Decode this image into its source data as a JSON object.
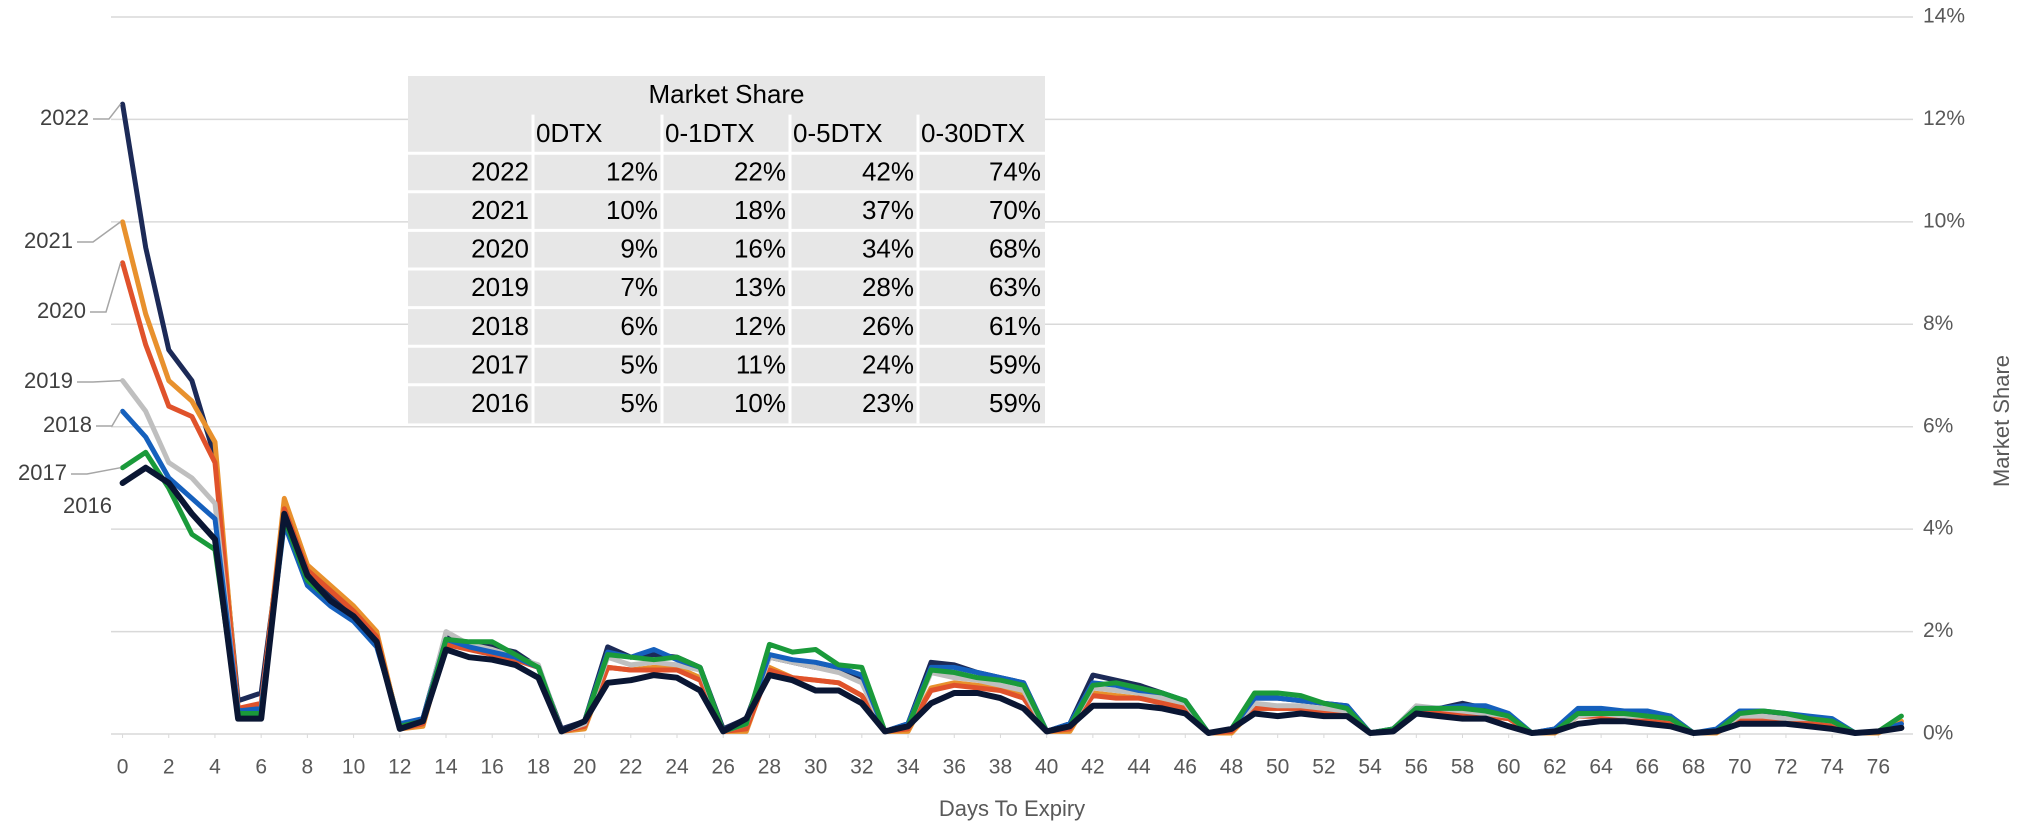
{
  "chart_data": {
    "type": "line",
    "x_label": "Days To Expiry",
    "y_label": "Market Share",
    "x": [
      0,
      1,
      2,
      3,
      4,
      5,
      6,
      7,
      8,
      9,
      10,
      11,
      12,
      13,
      14,
      15,
      16,
      17,
      18,
      19,
      20,
      21,
      22,
      23,
      24,
      25,
      26,
      27,
      28,
      29,
      30,
      31,
      32,
      33,
      34,
      35,
      36,
      37,
      38,
      39,
      40,
      41,
      42,
      43,
      44,
      45,
      46,
      47,
      48,
      49,
      50,
      51,
      52,
      53,
      54,
      55,
      56,
      57,
      58,
      59,
      60,
      61,
      62,
      63,
      64,
      65,
      66,
      67,
      68,
      69,
      70,
      71,
      72,
      73,
      74,
      75,
      76,
      77
    ],
    "xlim": [
      -0.5,
      77.5
    ],
    "xticks": [
      0,
      2,
      4,
      6,
      8,
      10,
      12,
      14,
      16,
      18,
      20,
      22,
      24,
      26,
      28,
      30,
      32,
      34,
      36,
      38,
      40,
      42,
      44,
      46,
      48,
      50,
      52,
      54,
      56,
      58,
      60,
      62,
      64,
      66,
      68,
      70,
      72,
      74,
      76
    ],
    "ylim": [
      0,
      14
    ],
    "yticks": [
      {
        "value": 0,
        "label": "0%"
      },
      {
        "value": 2,
        "label": "2%"
      },
      {
        "value": 4,
        "label": "4%"
      },
      {
        "value": 6,
        "label": "6%"
      },
      {
        "value": 8,
        "label": "8%"
      },
      {
        "value": 10,
        "label": "10%"
      },
      {
        "value": 12,
        "label": "12%"
      },
      {
        "value": 14,
        "label": "14%"
      }
    ],
    "y_axis_side": "right",
    "grid": true,
    "series": [
      {
        "name": "2022",
        "color": "#1c2a57",
        "values": [
          12.3,
          9.5,
          7.5,
          6.9,
          5.4,
          0.65,
          0.8,
          4.3,
          3.2,
          2.7,
          2.4,
          1.9,
          0.15,
          0.3,
          1.95,
          1.75,
          1.7,
          1.6,
          1.3,
          0.1,
          0.25,
          1.7,
          1.5,
          1.55,
          1.5,
          1.3,
          0.1,
          0.3,
          1.5,
          1.4,
          1.3,
          1.25,
          1.1,
          0.05,
          0.2,
          1.4,
          1.35,
          1.2,
          1.1,
          1.0,
          0.05,
          0.2,
          1.15,
          1.05,
          0.95,
          0.8,
          0.6,
          0.02,
          0.1,
          0.7,
          0.7,
          0.65,
          0.6,
          0.55,
          0.02,
          0.1,
          0.5,
          0.5,
          0.6,
          0.5,
          0.35,
          0.02,
          0.1,
          0.45,
          0.45,
          0.45,
          0.4,
          0.35,
          0.02,
          0.05,
          0.4,
          0.4,
          0.35,
          0.3,
          0.25,
          0.02,
          0.05,
          0.15
        ]
      },
      {
        "name": "2021",
        "color": "#e8912d",
        "values": [
          10.0,
          8.2,
          6.9,
          6.5,
          5.7,
          0.5,
          0.5,
          4.6,
          3.3,
          2.9,
          2.5,
          2.0,
          0.1,
          0.15,
          1.8,
          1.7,
          1.6,
          1.5,
          1.3,
          0.05,
          0.1,
          1.3,
          1.25,
          1.3,
          1.3,
          1.1,
          0.05,
          0.05,
          1.3,
          1.1,
          1.05,
          1.0,
          0.75,
          0.05,
          0.05,
          0.9,
          1.0,
          0.95,
          0.9,
          0.75,
          0.05,
          0.05,
          0.8,
          0.75,
          0.7,
          0.65,
          0.5,
          0.02,
          0.02,
          0.5,
          0.5,
          0.5,
          0.45,
          0.4,
          0.02,
          0.05,
          0.4,
          0.4,
          0.4,
          0.35,
          0.3,
          0.02,
          0.02,
          0.35,
          0.35,
          0.35,
          0.3,
          0.25,
          0.02,
          0.02,
          0.3,
          0.3,
          0.3,
          0.25,
          0.2,
          0.02,
          0.02,
          0.25
        ]
      },
      {
        "name": "2020",
        "color": "#e0522b",
        "values": [
          9.2,
          7.6,
          6.4,
          6.2,
          5.3,
          0.5,
          0.6,
          4.4,
          3.2,
          2.8,
          2.4,
          1.9,
          0.1,
          0.2,
          1.75,
          1.65,
          1.55,
          1.45,
          1.3,
          0.05,
          0.15,
          1.3,
          1.25,
          1.25,
          1.25,
          1.05,
          0.05,
          0.1,
          1.25,
          1.1,
          1.05,
          1.0,
          0.75,
          0.05,
          0.1,
          0.85,
          0.95,
          0.9,
          0.85,
          0.7,
          0.05,
          0.1,
          0.75,
          0.7,
          0.7,
          0.6,
          0.5,
          0.02,
          0.05,
          0.5,
          0.5,
          0.5,
          0.45,
          0.4,
          0.02,
          0.05,
          0.4,
          0.4,
          0.4,
          0.35,
          0.3,
          0.02,
          0.05,
          0.35,
          0.35,
          0.35,
          0.3,
          0.25,
          0.02,
          0.05,
          0.3,
          0.3,
          0.3,
          0.25,
          0.2,
          0.02,
          0.05,
          0.2
        ]
      },
      {
        "name": "2019",
        "color": "#bfbfbf",
        "values": [
          6.9,
          6.3,
          5.3,
          5.0,
          4.5,
          0.4,
          0.5,
          4.2,
          3.1,
          2.6,
          2.3,
          1.8,
          0.15,
          0.25,
          2.0,
          1.75,
          1.65,
          1.5,
          1.35,
          0.05,
          0.2,
          1.5,
          1.35,
          1.4,
          1.35,
          1.25,
          0.05,
          0.2,
          1.5,
          1.4,
          1.3,
          1.2,
          1.0,
          0.05,
          0.15,
          1.2,
          1.1,
          1.05,
          0.95,
          0.85,
          0.05,
          0.15,
          0.9,
          0.85,
          0.8,
          0.7,
          0.6,
          0.02,
          0.1,
          0.6,
          0.55,
          0.55,
          0.5,
          0.45,
          0.02,
          0.1,
          0.55,
          0.5,
          0.45,
          0.4,
          0.35,
          0.02,
          0.05,
          0.35,
          0.4,
          0.35,
          0.35,
          0.3,
          0.02,
          0.05,
          0.35,
          0.35,
          0.3,
          0.3,
          0.25,
          0.02,
          0.05,
          0.15
        ]
      },
      {
        "name": "2018",
        "color": "#1560bd",
        "values": [
          6.3,
          5.8,
          5.0,
          4.6,
          4.2,
          0.45,
          0.5,
          4.1,
          2.9,
          2.5,
          2.2,
          1.7,
          0.2,
          0.3,
          1.85,
          1.7,
          1.6,
          1.5,
          1.3,
          0.05,
          0.25,
          1.6,
          1.5,
          1.65,
          1.45,
          1.3,
          0.05,
          0.25,
          1.55,
          1.45,
          1.4,
          1.3,
          1.15,
          0.05,
          0.2,
          1.3,
          1.3,
          1.2,
          1.1,
          1.0,
          0.05,
          0.2,
          1.0,
          0.95,
          0.85,
          0.8,
          0.65,
          0.02,
          0.1,
          0.7,
          0.7,
          0.65,
          0.6,
          0.55,
          0.02,
          0.1,
          0.5,
          0.5,
          0.55,
          0.55,
          0.4,
          0.02,
          0.1,
          0.5,
          0.5,
          0.45,
          0.45,
          0.35,
          0.02,
          0.1,
          0.45,
          0.45,
          0.4,
          0.35,
          0.3,
          0.02,
          0.05,
          0.2
        ]
      },
      {
        "name": "2017",
        "color": "#1a9a3a",
        "values": [
          5.2,
          5.5,
          4.8,
          3.9,
          3.6,
          0.4,
          0.4,
          4.2,
          3.0,
          2.6,
          2.3,
          1.8,
          0.15,
          0.25,
          1.85,
          1.8,
          1.8,
          1.55,
          1.3,
          0.05,
          0.25,
          1.55,
          1.5,
          1.45,
          1.5,
          1.3,
          0.05,
          0.2,
          1.75,
          1.6,
          1.65,
          1.35,
          1.3,
          0.05,
          0.15,
          1.25,
          1.2,
          1.1,
          1.05,
          0.95,
          0.05,
          0.15,
          0.95,
          1.0,
          0.9,
          0.8,
          0.65,
          0.02,
          0.1,
          0.8,
          0.8,
          0.75,
          0.6,
          0.5,
          0.02,
          0.1,
          0.5,
          0.5,
          0.5,
          0.45,
          0.35,
          0.02,
          0.05,
          0.4,
          0.4,
          0.4,
          0.35,
          0.3,
          0.02,
          0.05,
          0.4,
          0.45,
          0.4,
          0.3,
          0.25,
          0.02,
          0.05,
          0.35
        ]
      },
      {
        "name": "2016",
        "color": "#0a1633",
        "values": [
          4.9,
          5.2,
          4.9,
          4.3,
          3.8,
          0.3,
          0.3,
          4.3,
          3.1,
          2.6,
          2.3,
          1.8,
          0.1,
          0.25,
          1.65,
          1.5,
          1.45,
          1.35,
          1.1,
          0.05,
          0.25,
          1.0,
          1.05,
          1.15,
          1.1,
          0.85,
          0.05,
          0.3,
          1.15,
          1.05,
          0.85,
          0.85,
          0.6,
          0.05,
          0.15,
          0.6,
          0.8,
          0.8,
          0.7,
          0.5,
          0.05,
          0.15,
          0.55,
          0.55,
          0.55,
          0.5,
          0.4,
          0.02,
          0.1,
          0.4,
          0.35,
          0.4,
          0.35,
          0.35,
          0.02,
          0.05,
          0.4,
          0.35,
          0.3,
          0.3,
          0.15,
          0.02,
          0.05,
          0.2,
          0.25,
          0.25,
          0.2,
          0.15,
          0.02,
          0.05,
          0.2,
          0.2,
          0.2,
          0.15,
          0.1,
          0.02,
          0.05,
          0.12
        ]
      }
    ],
    "table": {
      "title": "Market Share",
      "columns": [
        "0DTX",
        "0-1DTX",
        "0-5DTX",
        "0-30DTX"
      ],
      "rows": [
        {
          "label": "2022",
          "cells": [
            "12%",
            "22%",
            "42%",
            "74%"
          ]
        },
        {
          "label": "2021",
          "cells": [
            "10%",
            "18%",
            "37%",
            "70%"
          ]
        },
        {
          "label": "2020",
          "cells": [
            "9%",
            "16%",
            "34%",
            "68%"
          ]
        },
        {
          "label": "2019",
          "cells": [
            "7%",
            "13%",
            "28%",
            "63%"
          ]
        },
        {
          "label": "2018",
          "cells": [
            "6%",
            "12%",
            "26%",
            "61%"
          ]
        },
        {
          "label": "2017",
          "cells": [
            "5%",
            "11%",
            "24%",
            "59%"
          ]
        },
        {
          "label": "2016",
          "cells": [
            "5%",
            "10%",
            "23%",
            "59%"
          ]
        }
      ]
    }
  }
}
